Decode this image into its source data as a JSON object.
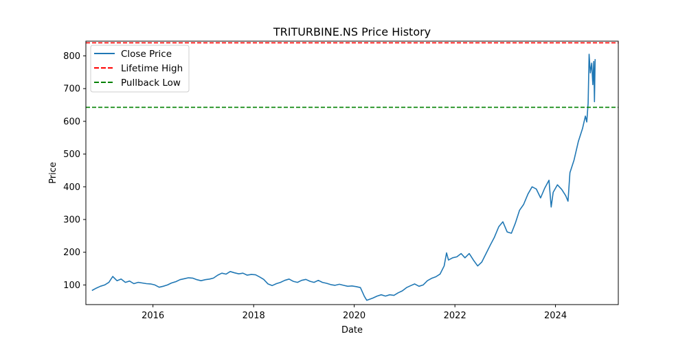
{
  "chart_data": {
    "type": "line",
    "title": "TRITURBINE.NS Price History",
    "xlabel": "Date",
    "ylabel": "Price",
    "xlim": [
      "2014-09-01",
      "2025-04-01"
    ],
    "ylim": [
      40,
      845
    ],
    "x_ticks": [
      {
        "value": "2016-01-01",
        "label": "2016"
      },
      {
        "value": "2018-01-01",
        "label": "2018"
      },
      {
        "value": "2020-01-01",
        "label": "2020"
      },
      {
        "value": "2022-01-01",
        "label": "2022"
      },
      {
        "value": "2024-01-01",
        "label": "2024"
      }
    ],
    "y_ticks": [
      100,
      200,
      300,
      400,
      500,
      600,
      700,
      800
    ],
    "grid": false,
    "legend_position": "top-left",
    "series": [
      {
        "name": "Close Price",
        "color": "#1f77b4",
        "style": "solid",
        "points": [
          [
            "2014-10-15",
            83
          ],
          [
            "2014-11-15",
            90
          ],
          [
            "2014-12-15",
            96
          ],
          [
            "2015-01-15",
            100
          ],
          [
            "2015-02-15",
            108
          ],
          [
            "2015-03-15",
            126
          ],
          [
            "2015-04-15",
            113
          ],
          [
            "2015-05-15",
            118
          ],
          [
            "2015-06-15",
            108
          ],
          [
            "2015-07-15",
            112
          ],
          [
            "2015-08-15",
            104
          ],
          [
            "2015-09-15",
            108
          ],
          [
            "2015-10-15",
            106
          ],
          [
            "2015-11-15",
            104
          ],
          [
            "2015-12-15",
            103
          ],
          [
            "2016-01-15",
            100
          ],
          [
            "2016-02-15",
            93
          ],
          [
            "2016-03-15",
            96
          ],
          [
            "2016-04-15",
            100
          ],
          [
            "2016-05-15",
            106
          ],
          [
            "2016-06-15",
            110
          ],
          [
            "2016-07-15",
            116
          ],
          [
            "2016-08-15",
            119
          ],
          [
            "2016-09-15",
            122
          ],
          [
            "2016-10-15",
            121
          ],
          [
            "2016-11-15",
            116
          ],
          [
            "2016-12-15",
            113
          ],
          [
            "2017-01-15",
            116
          ],
          [
            "2017-02-15",
            118
          ],
          [
            "2017-03-15",
            121
          ],
          [
            "2017-04-15",
            130
          ],
          [
            "2017-05-15",
            136
          ],
          [
            "2017-06-15",
            133
          ],
          [
            "2017-07-15",
            141
          ],
          [
            "2017-08-15",
            137
          ],
          [
            "2017-09-15",
            134
          ],
          [
            "2017-10-15",
            136
          ],
          [
            "2017-11-15",
            130
          ],
          [
            "2017-12-15",
            132
          ],
          [
            "2018-01-15",
            131
          ],
          [
            "2018-02-15",
            124
          ],
          [
            "2018-03-15",
            117
          ],
          [
            "2018-04-15",
            103
          ],
          [
            "2018-05-15",
            98
          ],
          [
            "2018-06-15",
            104
          ],
          [
            "2018-07-15",
            108
          ],
          [
            "2018-08-15",
            114
          ],
          [
            "2018-09-15",
            118
          ],
          [
            "2018-10-15",
            111
          ],
          [
            "2018-11-15",
            108
          ],
          [
            "2018-12-15",
            114
          ],
          [
            "2019-01-15",
            117
          ],
          [
            "2019-02-15",
            111
          ],
          [
            "2019-03-15",
            108
          ],
          [
            "2019-04-15",
            114
          ],
          [
            "2019-05-15",
            108
          ],
          [
            "2019-06-15",
            105
          ],
          [
            "2019-07-15",
            101
          ],
          [
            "2019-08-15",
            99
          ],
          [
            "2019-09-15",
            102
          ],
          [
            "2019-10-15",
            99
          ],
          [
            "2019-11-15",
            96
          ],
          [
            "2019-12-15",
            97
          ],
          [
            "2020-01-15",
            95
          ],
          [
            "2020-02-15",
            92
          ],
          [
            "2020-03-15",
            65
          ],
          [
            "2020-04-01",
            53
          ],
          [
            "2020-05-15",
            60
          ],
          [
            "2020-06-15",
            66
          ],
          [
            "2020-07-15",
            70
          ],
          [
            "2020-08-15",
            66
          ],
          [
            "2020-09-15",
            70
          ],
          [
            "2020-10-15",
            68
          ],
          [
            "2020-11-15",
            76
          ],
          [
            "2020-12-15",
            82
          ],
          [
            "2021-01-15",
            92
          ],
          [
            "2021-02-15",
            98
          ],
          [
            "2021-03-15",
            103
          ],
          [
            "2021-04-15",
            96
          ],
          [
            "2021-05-15",
            100
          ],
          [
            "2021-06-15",
            113
          ],
          [
            "2021-07-15",
            120
          ],
          [
            "2021-08-15",
            125
          ],
          [
            "2021-09-15",
            133
          ],
          [
            "2021-10-15",
            158
          ],
          [
            "2021-11-01",
            198
          ],
          [
            "2021-11-15",
            176
          ],
          [
            "2021-12-15",
            183
          ],
          [
            "2022-01-15",
            186
          ],
          [
            "2022-02-15",
            196
          ],
          [
            "2022-03-15",
            183
          ],
          [
            "2022-04-15",
            196
          ],
          [
            "2022-05-15",
            176
          ],
          [
            "2022-06-15",
            158
          ],
          [
            "2022-07-15",
            170
          ],
          [
            "2022-08-15",
            196
          ],
          [
            "2022-09-15",
            222
          ],
          [
            "2022-10-15",
            246
          ],
          [
            "2022-11-15",
            278
          ],
          [
            "2022-12-15",
            293
          ],
          [
            "2023-01-15",
            262
          ],
          [
            "2023-02-15",
            258
          ],
          [
            "2023-03-15",
            288
          ],
          [
            "2023-04-15",
            328
          ],
          [
            "2023-05-15",
            346
          ],
          [
            "2023-06-15",
            378
          ],
          [
            "2023-07-15",
            400
          ],
          [
            "2023-08-15",
            393
          ],
          [
            "2023-09-15",
            366
          ],
          [
            "2023-10-15",
            396
          ],
          [
            "2023-11-15",
            420
          ],
          [
            "2023-12-01",
            338
          ],
          [
            "2023-12-15",
            383
          ],
          [
            "2024-01-15",
            406
          ],
          [
            "2024-02-15",
            392
          ],
          [
            "2024-03-15",
            373
          ],
          [
            "2024-04-01",
            356
          ],
          [
            "2024-04-15",
            443
          ],
          [
            "2024-05-15",
            482
          ],
          [
            "2024-06-15",
            538
          ],
          [
            "2024-07-15",
            578
          ],
          [
            "2024-08-05",
            616
          ],
          [
            "2024-08-15",
            598
          ],
          [
            "2024-08-25",
            655
          ],
          [
            "2024-09-01",
            805
          ],
          [
            "2024-09-10",
            748
          ],
          [
            "2024-09-20",
            778
          ],
          [
            "2024-09-28",
            712
          ],
          [
            "2024-10-05",
            783
          ],
          [
            "2024-10-10",
            660
          ],
          [
            "2024-10-15",
            790
          ]
        ]
      },
      {
        "name": "Lifetime High",
        "color": "#ff0000",
        "style": "dashed",
        "y": 840
      },
      {
        "name": "Pullback Low",
        "color": "#008000",
        "style": "dashed",
        "y": 643
      }
    ]
  }
}
